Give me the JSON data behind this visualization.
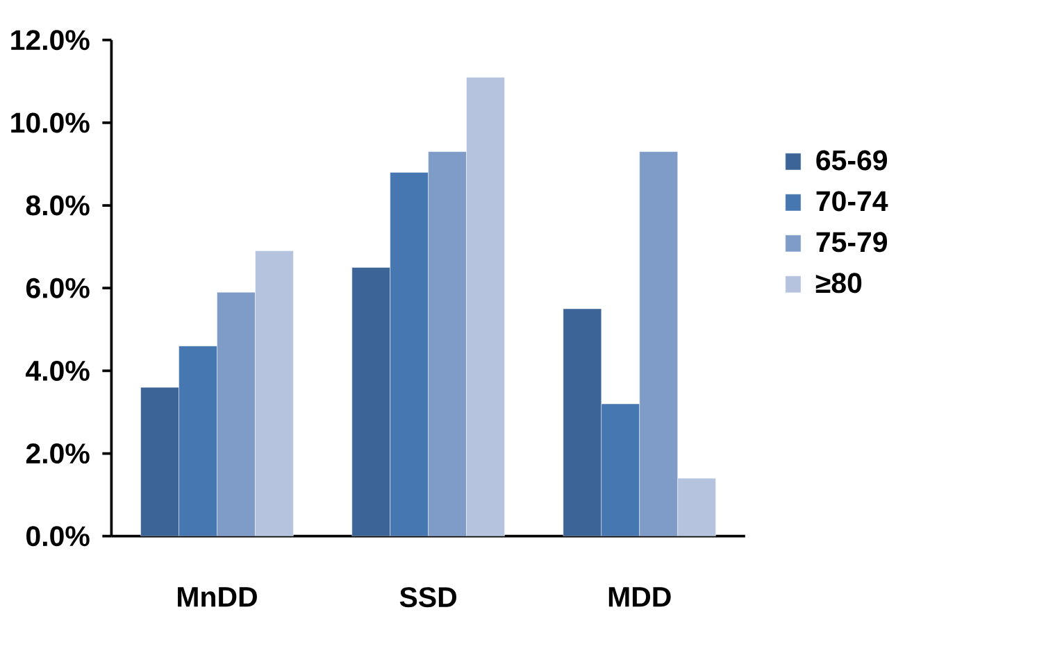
{
  "chart_data": {
    "type": "bar",
    "categories": [
      "MnDD",
      "SSD",
      "MDD"
    ],
    "series": [
      {
        "name": "65-69",
        "color": "#3c6496",
        "values": [
          3.6,
          6.5,
          5.5
        ]
      },
      {
        "name": "70-74",
        "color": "#4677b0",
        "values": [
          4.6,
          8.8,
          3.2
        ]
      },
      {
        "name": "75-79",
        "color": "#7f9cc8",
        "values": [
          5.9,
          9.3,
          9.3
        ]
      },
      {
        "name": "≥80",
        "color": "#b5c3de",
        "values": [
          6.9,
          11.1,
          1.4
        ]
      }
    ],
    "ylim": [
      0,
      12
    ],
    "yticks": [
      {
        "value": 0,
        "label": "0.0%"
      },
      {
        "value": 2,
        "label": "2.0%"
      },
      {
        "value": 4,
        "label": "4.0%"
      },
      {
        "value": 6,
        "label": "6.0%"
      },
      {
        "value": 8,
        "label": "8.0%"
      },
      {
        "value": 10,
        "label": "10.0%"
      },
      {
        "value": 12,
        "label": "12.0%"
      }
    ],
    "grid": false,
    "legend": "right"
  }
}
